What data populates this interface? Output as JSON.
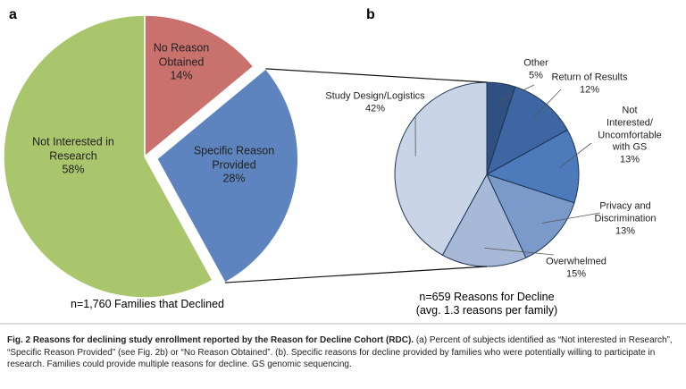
{
  "chart_data": [
    {
      "type": "pie",
      "panel_label": "a",
      "categories": [
        "No Reason\nObtained",
        "Specific Reason\nProvided",
        "Not Interested in\nResearch"
      ],
      "values": [
        14,
        28,
        58
      ],
      "value_labels": [
        "14%",
        "28%",
        "58%"
      ],
      "colors": [
        "#c8716d",
        "#5d84be",
        "#a9c66c"
      ],
      "footnote": "n=1,760 Families that Declined"
    },
    {
      "type": "pie",
      "panel_label": "b",
      "categories": [
        "Other",
        "Return of Results",
        "Not Interested/\nUncomfortable with GS",
        "Privacy and\nDiscrimination",
        "Overwhelmed",
        "Study Design/Logistics"
      ],
      "values": [
        5,
        12,
        13,
        13,
        15,
        42
      ],
      "value_labels": [
        "5%",
        "12%",
        "13%",
        "13%",
        "15%",
        "42%"
      ],
      "colors": [
        "#2f5080",
        "#3d66a2",
        "#4c7aba",
        "#7b99c9",
        "#a7b9d7",
        "#cad4e7"
      ],
      "footnote": "n=659 Reasons for Decline\n(avg. 1.3 reasons per family)"
    }
  ],
  "caption": {
    "title": "Fig. 2  Reasons for declining study enrollment reported by the Reason for Decline Cohort (RDC).",
    "text": "(a) Percent of subjects identified as “Not interested in Research”, “Specific Reason Provided” (see Fig. 2b) or “No Reason Obtained”. (b). Specific reasons for decline provided by families who were potentially willing to participate in research. Families could provide multiple reasons for decline. GS genomic sequencing."
  }
}
